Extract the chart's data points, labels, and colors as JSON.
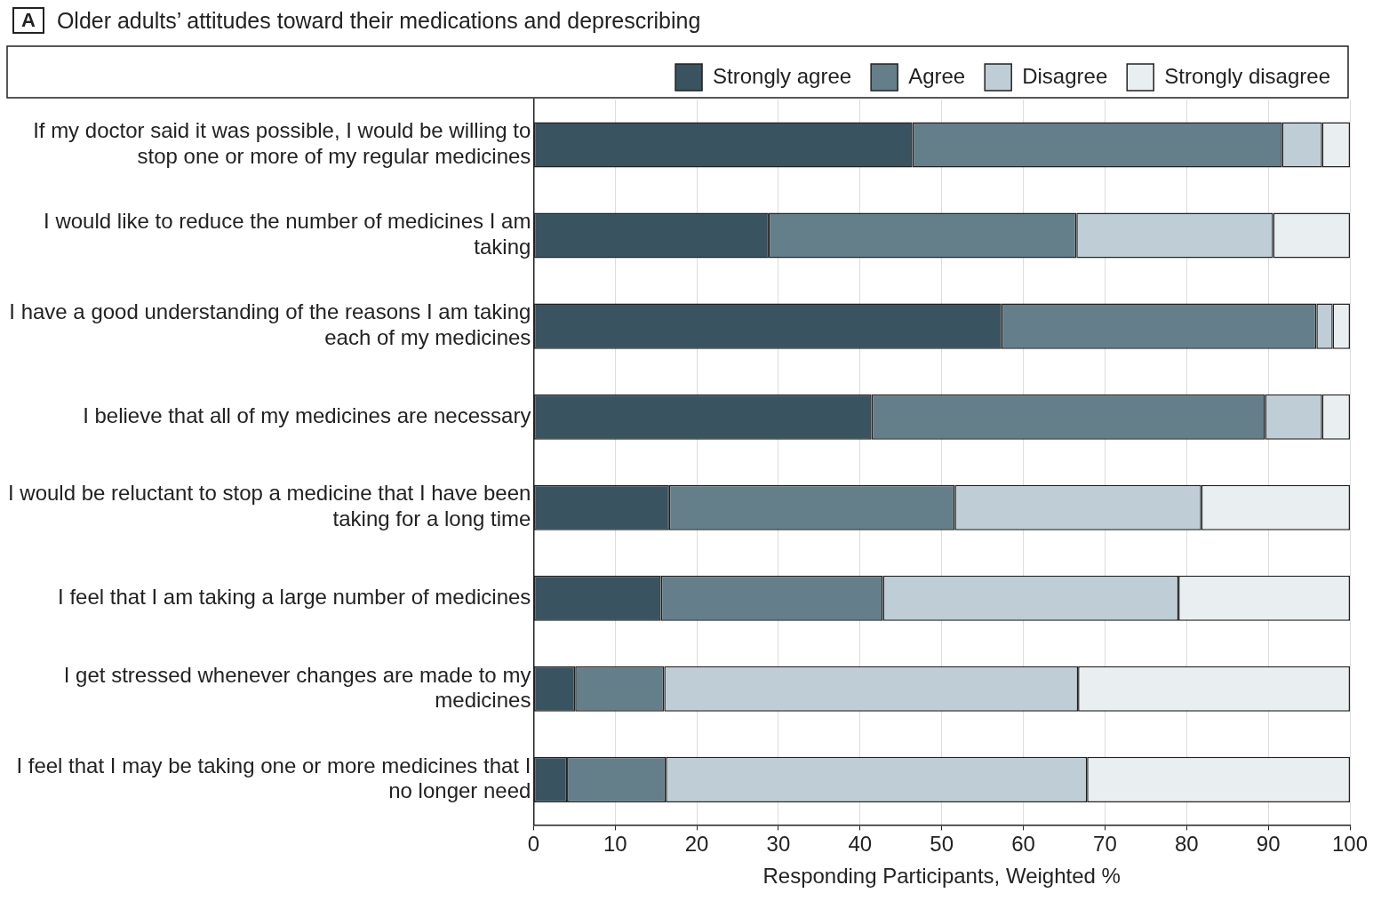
{
  "chart_data": {
    "type": "bar",
    "orientation": "horizontal",
    "stacked": true,
    "title": "Older adults’ attitudes toward their medications and deprescribing",
    "annotations": [
      "A"
    ],
    "xlabel": "Responding Participants, Weighted %",
    "categories": [
      "If my doctor said it was possible, I would be willing to stop one or more of my regular medicines",
      "I would like to reduce the number of medicines I am taking",
      "I have a good understanding of the reasons I am taking each of my medicines",
      "I believe that all of my medicines are necessary",
      "I would be reluctant to stop a medicine that I have been taking for a long time",
      "I feel that I am taking a large number of medicines",
      "I get stressed whenever changes are made to my medicines",
      "I feel that I may be taking one or more medicines that I no longer need"
    ],
    "series": [
      {
        "name": "Strongly agree",
        "color": "#3a5361",
        "values": [
          46.4,
          28.8,
          57.3,
          41.4,
          16.6,
          15.6,
          5.1,
          4.1
        ]
      },
      {
        "name": "Agree",
        "color": "#647e8a",
        "values": [
          45.3,
          37.7,
          38.6,
          48.2,
          35.0,
          27.2,
          10.9,
          12.1
        ]
      },
      {
        "name": "Disagree",
        "color": "#bfced6",
        "values": [
          4.9,
          24.1,
          2.0,
          7.0,
          30.2,
          36.2,
          50.7,
          51.6
        ]
      },
      {
        "name": "Strongly disagree",
        "color": "#e9eef1",
        "values": [
          3.4,
          9.4,
          2.1,
          3.4,
          18.2,
          21.0,
          33.3,
          32.2
        ]
      }
    ],
    "xlim": [
      0,
      100
    ],
    "xticks": [
      0,
      10,
      20,
      30,
      40,
      50,
      60,
      70,
      80,
      90,
      100
    ],
    "grid": "x",
    "legend": "top right"
  }
}
